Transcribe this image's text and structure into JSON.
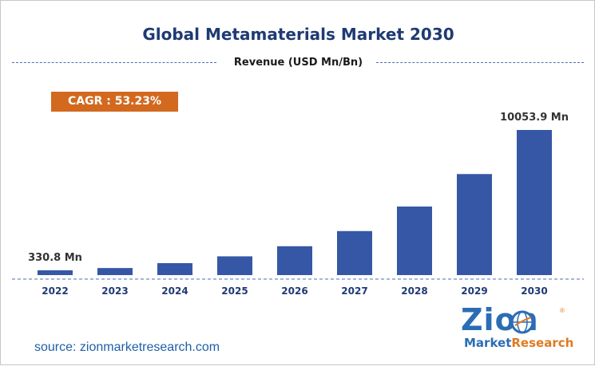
{
  "chart_data": {
    "type": "bar",
    "title": "Global Metamaterials Market 2030",
    "subtitle": "Revenue (USD Mn/Bn)",
    "categories": [
      "2022",
      "2023",
      "2024",
      "2025",
      "2026",
      "2027",
      "2028",
      "2029",
      "2030"
    ],
    "values": [
      330.8,
      490,
      830,
      1300,
      2000,
      3050,
      4750,
      7000,
      10053.9
    ],
    "data_labels": {
      "0": "330.8 Mn",
      "8": "10053.9 Mn"
    },
    "ylim": [
      0,
      10500
    ],
    "grid": false,
    "legend": "none",
    "bar_color": "#3557a5"
  },
  "annotation": {
    "cagr": "CAGR : 53.23%",
    "cagr_color": "#d2691e"
  },
  "footer": {
    "source": "source: zionmarketresearch.com"
  },
  "logo": {
    "word": "Zion",
    "tag_part1": "Market",
    "tag_part2": "Research",
    "reg": "®",
    "color": "#2a6db5",
    "accent": "#e07a1f"
  }
}
